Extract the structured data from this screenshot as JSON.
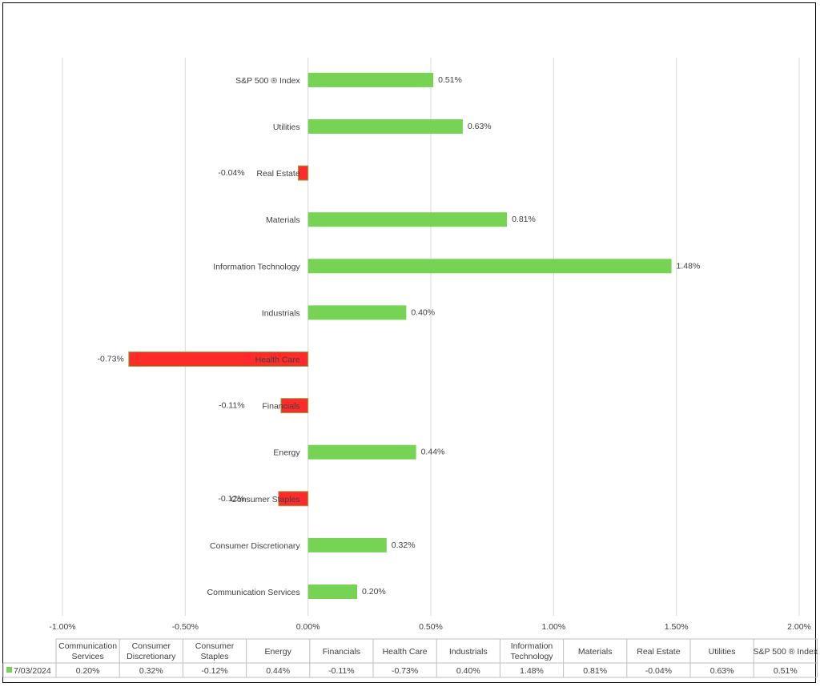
{
  "chart_data": {
    "type": "bar",
    "orientation": "horizontal",
    "categories": [
      "Communication Services",
      "Consumer Discretionary",
      "Consumer Staples",
      "Energy",
      "Financials",
      "Health Care",
      "Industrials",
      "Information Technology",
      "Materials",
      "Real Estate",
      "Utilities",
      "S&P 500 ® Index"
    ],
    "table_headers": [
      [
        "Communication",
        "Services"
      ],
      [
        "Consumer",
        "Discretionary"
      ],
      [
        "Consumer",
        "Staples"
      ],
      [
        "Energy"
      ],
      [
        "Financials"
      ],
      [
        "Health Care"
      ],
      [
        "Industrials"
      ],
      [
        "Information",
        "Technology"
      ],
      [
        "Materials"
      ],
      [
        "Real Estate"
      ],
      [
        "Utilities"
      ],
      [
        "S&P 500 ® Index"
      ]
    ],
    "series": [
      {
        "name": "7/03/2024",
        "values": [
          0.2,
          0.32,
          -0.12,
          0.44,
          -0.11,
          -0.73,
          0.4,
          1.48,
          0.81,
          -0.04,
          0.63,
          0.51
        ],
        "labels": [
          "0.20%",
          "0.32%",
          "-0.12%",
          "0.44%",
          "-0.11%",
          "-0.73%",
          "0.40%",
          "1.48%",
          "0.81%",
          "-0.04%",
          "0.63%",
          "0.51%"
        ]
      }
    ],
    "xlim": [
      -1.0,
      2.0
    ],
    "xticks": [
      -1.0,
      -0.5,
      0.0,
      0.5,
      1.0,
      1.5,
      2.0
    ],
    "xtick_labels": [
      "-1.00%",
      "-0.50%",
      "0.00%",
      "0.50%",
      "1.00%",
      "1.50%",
      "2.00%"
    ],
    "grid": true,
    "legend_placement": "data table (bottom)",
    "colors": {
      "positive": "#77d353",
      "negative": "#ff2a2a",
      "grid": "#d9d9d9",
      "axis": "#bfbfbf",
      "text": "#404040"
    }
  }
}
